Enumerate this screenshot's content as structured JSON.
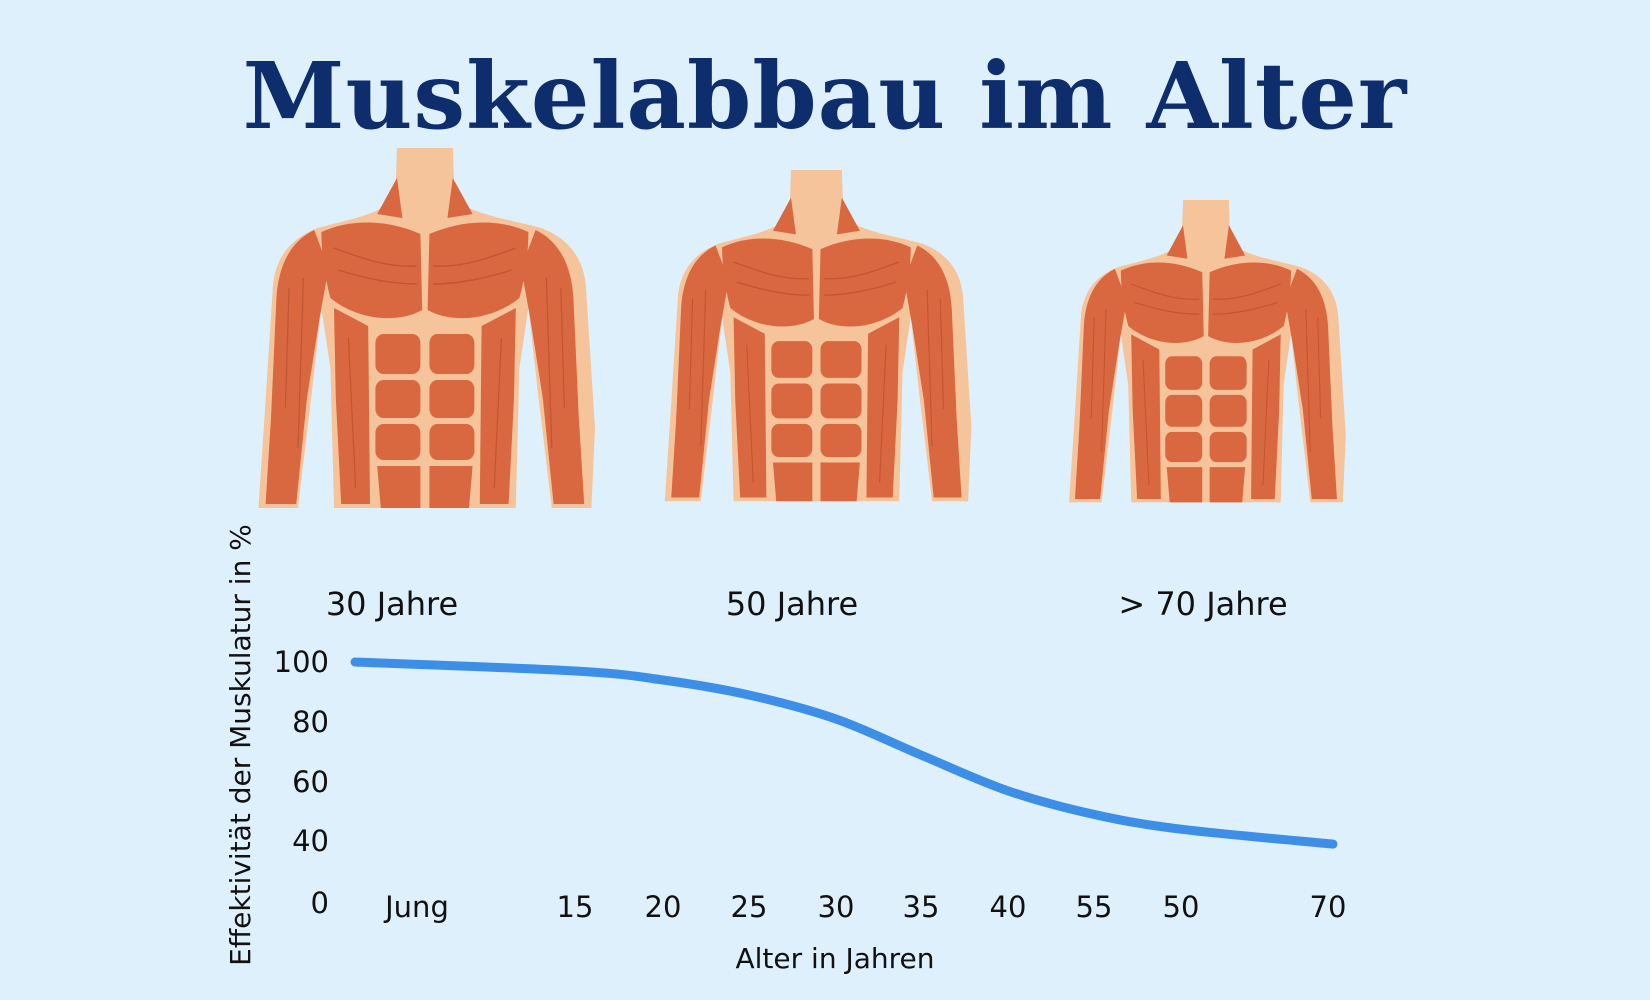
{
  "title": "Muskelabbau im Alter",
  "figures": [
    {
      "label": "30 Jahre",
      "icon": "muscular-torso-icon"
    },
    {
      "label": "50 Jahre",
      "icon": "muscular-torso-icon"
    },
    {
      "label": "> 70 Jahre",
      "icon": "muscular-torso-icon"
    }
  ],
  "colors": {
    "background": "#dff0fd",
    "title": "#0d2d6c",
    "skin": "#f5c49b",
    "muscle": "#d9673f",
    "muscle_line": "#b8502c",
    "curve": "#3d8ee6"
  },
  "chart_data": {
    "type": "line",
    "title": "",
    "xlabel": "Alter in Jahren",
    "ylabel": "Effektivität der Muskulatur in %",
    "x_ticks": [
      "Jung",
      "15",
      "20",
      "25",
      "30",
      "35",
      "40",
      "55",
      "50",
      "70"
    ],
    "y_ticks": [
      "0",
      "40",
      "60",
      "80",
      "100"
    ],
    "grid": false,
    "series": [
      {
        "x": [
          "Jung",
          "15",
          "20",
          "25",
          "30",
          "35",
          "40",
          "55",
          "50",
          "70"
        ],
        "values": [
          100,
          97,
          94,
          89,
          81,
          69,
          57,
          49,
          44,
          38
        ]
      }
    ]
  }
}
